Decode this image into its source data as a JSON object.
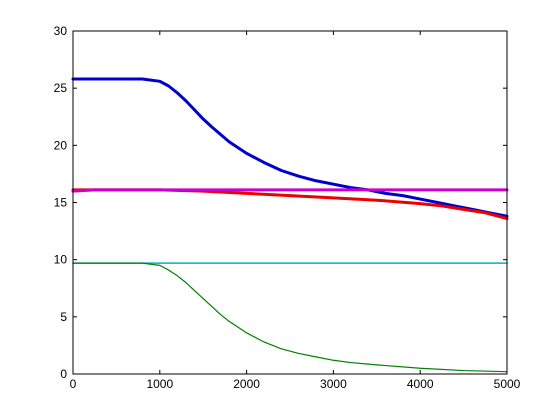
{
  "chart_data": {
    "type": "line",
    "title": "",
    "xlabel": "",
    "ylabel": "",
    "xlim": [
      0,
      5000
    ],
    "ylim": [
      0,
      30
    ],
    "xticks": [
      0,
      1000,
      2000,
      3000,
      4000,
      5000
    ],
    "yticks": [
      0,
      5,
      10,
      15,
      20,
      25,
      30
    ],
    "xtick_labels": [
      "0",
      "1000",
      "2000",
      "3000",
      "4000",
      "5000"
    ],
    "ytick_labels": [
      "0",
      "5",
      "10",
      "15",
      "20",
      "25",
      "30"
    ],
    "grid": false,
    "legend": "none",
    "series": [
      {
        "color": "#0000cc",
        "stroke_width": 3,
        "x": [
          0,
          200,
          400,
          600,
          800,
          1000,
          1100,
          1200,
          1300,
          1400,
          1500,
          1600,
          1800,
          2000,
          2200,
          2400,
          2600,
          2800,
          3000,
          3200,
          3400,
          3600,
          3800,
          4000,
          4200,
          4400,
          4600,
          4800,
          5000
        ],
        "y": [
          25.8,
          25.8,
          25.8,
          25.8,
          25.8,
          25.6,
          25.2,
          24.6,
          23.9,
          23.1,
          22.3,
          21.6,
          20.3,
          19.3,
          18.5,
          17.8,
          17.3,
          16.9,
          16.6,
          16.3,
          16.1,
          15.8,
          15.6,
          15.3,
          15.0,
          14.7,
          14.4,
          14.1,
          13.8
        ]
      },
      {
        "color": "#ee0000",
        "stroke_width": 3,
        "x": [
          0,
          500,
          1000,
          1500,
          2000,
          2500,
          3000,
          3500,
          4000,
          4250,
          4500,
          4750,
          5000
        ],
        "y": [
          16.1,
          16.1,
          16.1,
          16.0,
          15.8,
          15.6,
          15.4,
          15.2,
          14.9,
          14.7,
          14.4,
          14.1,
          13.6
        ]
      },
      {
        "color": "#cc00cc",
        "stroke_width": 3,
        "x": [
          0,
          250,
          500,
          750,
          1000,
          1500,
          2000,
          2500,
          3000,
          3500,
          4000,
          4500,
          5000
        ],
        "y": [
          16.0,
          16.1,
          16.1,
          16.1,
          16.1,
          16.1,
          16.1,
          16.1,
          16.1,
          16.1,
          16.1,
          16.1,
          16.1
        ]
      },
      {
        "color": "#00b3b3",
        "stroke_width": 1.5,
        "x": [
          0,
          500,
          1000,
          2000,
          3000,
          4000,
          5000
        ],
        "y": [
          9.7,
          9.7,
          9.7,
          9.7,
          9.7,
          9.7,
          9.7
        ]
      },
      {
        "color": "#008000",
        "stroke_width": 1.2,
        "x": [
          0,
          200,
          400,
          600,
          800,
          1000,
          1100,
          1200,
          1300,
          1400,
          1500,
          1600,
          1700,
          1800,
          2000,
          2200,
          2400,
          2600,
          2800,
          3000,
          3200,
          3500,
          4000,
          4500,
          5000
        ],
        "y": [
          9.7,
          9.7,
          9.7,
          9.7,
          9.7,
          9.5,
          9.1,
          8.6,
          8.0,
          7.3,
          6.6,
          5.9,
          5.2,
          4.6,
          3.6,
          2.8,
          2.2,
          1.8,
          1.5,
          1.2,
          1.0,
          0.8,
          0.5,
          0.3,
          0.2
        ]
      }
    ]
  }
}
